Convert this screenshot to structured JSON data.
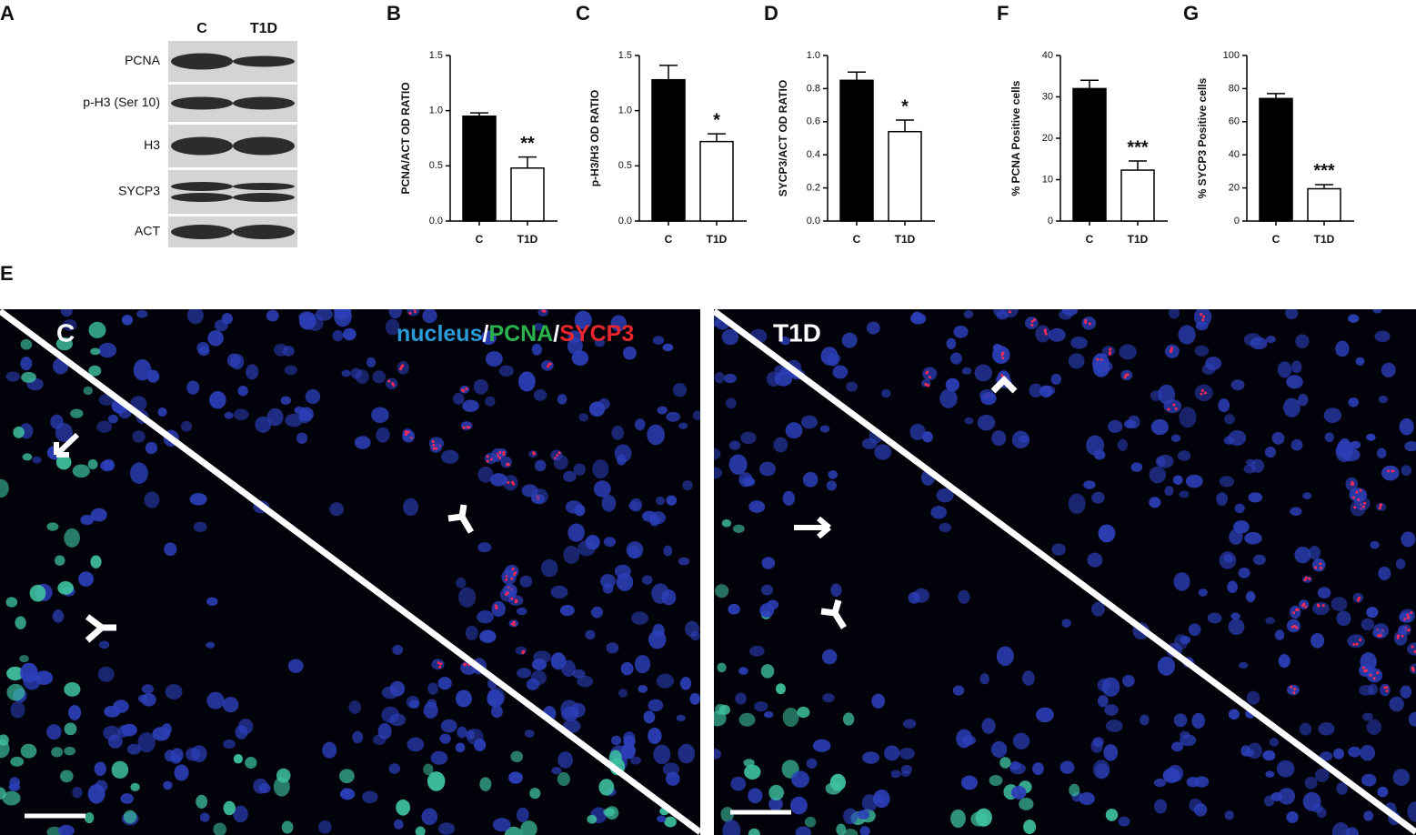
{
  "blot": {
    "panel": "A",
    "lanes": [
      "C",
      "T1D"
    ],
    "rows": [
      "PCNA",
      "p-H3 (Ser 10)",
      "H3",
      "SYCP3",
      "ACT"
    ]
  },
  "chart_data": [
    {
      "type": "bar",
      "panel": "B",
      "ylabel": "PCNA/ACT OD RATIO",
      "categories": [
        "C",
        "T1D"
      ],
      "values": [
        0.95,
        0.48
      ],
      "errors": [
        0.03,
        0.1
      ],
      "colors": [
        "#000000",
        "#ffffff"
      ],
      "annotations": [
        null,
        "**"
      ],
      "ylim": [
        0,
        1.5
      ],
      "yticks": [
        {
          "value": 0,
          "label": "0.0"
        },
        {
          "value": 0.5,
          "label": "0.5"
        },
        {
          "value": 1,
          "label": "1.0"
        },
        {
          "value": 1.5,
          "label": "1.5"
        }
      ]
    },
    {
      "type": "bar",
      "panel": "C",
      "ylabel": "p-H3/H3 OD RATIO",
      "categories": [
        "C",
        "T1D"
      ],
      "values": [
        1.28,
        0.72
      ],
      "errors": [
        0.13,
        0.07
      ],
      "colors": [
        "#000000",
        "#ffffff"
      ],
      "annotations": [
        null,
        "*"
      ],
      "ylim": [
        0,
        1.5
      ],
      "yticks": [
        {
          "value": 0,
          "label": "0.0"
        },
        {
          "value": 0.5,
          "label": "0.5"
        },
        {
          "value": 1,
          "label": "1.0"
        },
        {
          "value": 1.5,
          "label": "1.5"
        }
      ]
    },
    {
      "type": "bar",
      "panel": "D",
      "ylabel": "SYCP3/ACT OD RATIO",
      "categories": [
        "C",
        "T1D"
      ],
      "values": [
        0.85,
        0.54
      ],
      "errors": [
        0.05,
        0.07
      ],
      "colors": [
        "#000000",
        "#ffffff"
      ],
      "annotations": [
        null,
        "*"
      ],
      "ylim": [
        0,
        1.0
      ],
      "yticks": [
        {
          "value": 0,
          "label": "0.0"
        },
        {
          "value": 0.2,
          "label": "0.2"
        },
        {
          "value": 0.4,
          "label": "0.4"
        },
        {
          "value": 0.6,
          "label": "0.6"
        },
        {
          "value": 0.8,
          "label": "0.8"
        },
        {
          "value": 1,
          "label": "1.0"
        }
      ]
    },
    {
      "type": "bar",
      "panel": "F",
      "ylabel": "% PCNA Positive cells",
      "categories": [
        "C",
        "T1D"
      ],
      "values": [
        32,
        12.3
      ],
      "errors": [
        2,
        2.2
      ],
      "colors": [
        "#000000",
        "#ffffff"
      ],
      "annotations": [
        null,
        "***"
      ],
      "ylim": [
        0,
        40
      ],
      "yticks": [
        0,
        10,
        20,
        30,
        40
      ]
    },
    {
      "type": "bar",
      "panel": "G",
      "ylabel": "% SYCP3 Positive cells",
      "categories": [
        "C",
        "T1D"
      ],
      "values": [
        74,
        19.5
      ],
      "errors": [
        3,
        2.5
      ],
      "colors": [
        "#000000",
        "#ffffff"
      ],
      "annotations": [
        null,
        "***"
      ],
      "ylim": [
        0,
        100
      ],
      "yticks": [
        0,
        20,
        40,
        60,
        80,
        100
      ]
    }
  ],
  "micrograph": {
    "panel": "E",
    "images": [
      "C",
      "T1D"
    ],
    "stain_legend": [
      {
        "text": "nucleus",
        "color": "#2a9bd8"
      },
      {
        "text": "/",
        "color": "#ffffff"
      },
      {
        "text": "PCNA",
        "color": "#2bb24c"
      },
      {
        "text": "/",
        "color": "#ffffff"
      },
      {
        "text": "SYCP3",
        "color": "#e8262e"
      }
    ]
  }
}
